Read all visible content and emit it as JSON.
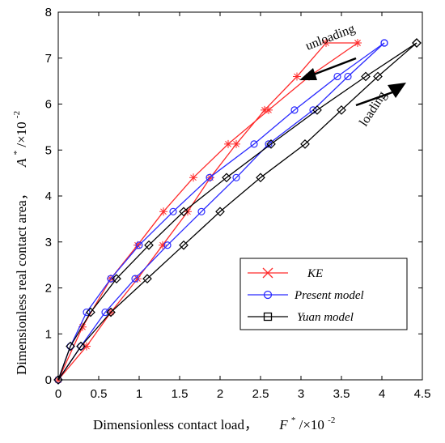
{
  "chart_data": {
    "type": "line",
    "xlabel_text": "Dimensionless contact load，",
    "xlabel_var": "F",
    "xlabel_unit": "/×10",
    "xlabel_exp": "-2",
    "ylabel_text": "Dimensionless real contact area，",
    "ylabel_var": "A",
    "ylabel_unit": "/×10",
    "ylabel_exp": "-2",
    "superscript_star": "*",
    "xlim": [
      0,
      4.5
    ],
    "ylim": [
      0,
      8
    ],
    "xticks": [
      "0",
      "0.5",
      "1",
      "1.5",
      "2",
      "2.5",
      "3",
      "3.5",
      "4",
      "4.5"
    ],
    "yticks": [
      "0",
      "1",
      "2",
      "3",
      "4",
      "5",
      "6",
      "7",
      "8"
    ],
    "grid": false,
    "legend_position": "lower-right",
    "annotations": {
      "unloading": "unloading",
      "loading": "loading"
    },
    "series": [
      {
        "name": "KE",
        "color": "#ff2a2a",
        "marker": "star",
        "loading": {
          "x": [
            0,
            0.35,
            0.65,
            0.98,
            1.29,
            1.6,
            1.88,
            2.2,
            2.55,
            2.95,
            3.31,
            3.7
          ],
          "y": [
            0,
            0.73,
            1.47,
            2.2,
            2.93,
            3.66,
            4.4,
            5.13,
            5.87,
            6.6,
            7.33,
            7.33
          ]
        },
        "unloading": {
          "x": [
            3.7,
            3.1,
            2.6,
            2.1,
            1.67,
            1.3,
            0.98,
            0.65,
            0.3,
            0
          ],
          "y": [
            7.33,
            6.6,
            5.87,
            5.13,
            4.4,
            3.66,
            2.93,
            2.2,
            1.15,
            0
          ]
        }
      },
      {
        "name": "Present model",
        "color": "#2a2aff",
        "marker": "circle",
        "loading": {
          "x": [
            0,
            0.28,
            0.58,
            0.95,
            1.35,
            1.77,
            2.2,
            2.6,
            3.15,
            3.58,
            4.03
          ],
          "y": [
            0,
            0.73,
            1.47,
            2.2,
            2.93,
            3.66,
            4.4,
            5.13,
            5.87,
            6.6,
            7.33
          ]
        },
        "unloading": {
          "x": [
            4.03,
            3.45,
            2.92,
            2.42,
            1.87,
            1.42,
            1.0,
            0.65,
            0.35,
            0.15,
            0
          ],
          "y": [
            7.33,
            6.6,
            5.87,
            5.13,
            4.4,
            3.66,
            2.93,
            2.2,
            1.47,
            0.73,
            0
          ]
        }
      },
      {
        "name": "Yuan model",
        "color": "#000000",
        "marker": "diamond",
        "loading": {
          "x": [
            0,
            0.28,
            0.65,
            1.1,
            1.55,
            2.0,
            2.5,
            3.05,
            3.5,
            3.95,
            4.43
          ],
          "y": [
            0,
            0.73,
            1.47,
            2.2,
            2.93,
            3.66,
            4.4,
            5.13,
            5.87,
            6.6,
            7.33
          ]
        },
        "unloading": {
          "x": [
            4.43,
            3.8,
            3.2,
            2.63,
            2.08,
            1.55,
            1.12,
            0.72,
            0.4,
            0.15,
            0
          ],
          "y": [
            7.33,
            6.6,
            5.87,
            5.13,
            4.4,
            3.66,
            2.93,
            2.2,
            1.47,
            0.73,
            0
          ]
        }
      }
    ]
  }
}
